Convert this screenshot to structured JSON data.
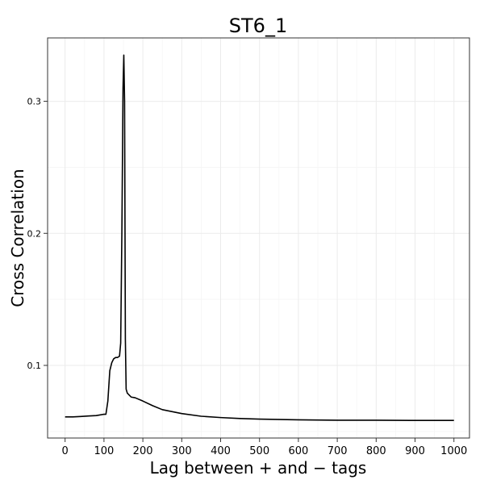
{
  "chart_data": {
    "type": "line",
    "title": "ST6_1",
    "xlabel": "Lag between + and − tags",
    "ylabel": "Cross Correlation",
    "xlim": [
      -45,
      1040
    ],
    "ylim": [
      0.045,
      0.348
    ],
    "xticks": [
      0,
      100,
      200,
      300,
      400,
      500,
      600,
      700,
      800,
      900,
      1000
    ],
    "yticks": [
      0.1,
      0.2,
      0.3
    ],
    "ytick_labels": [
      "0.1",
      "0.2",
      "0.3"
    ],
    "grid": true,
    "series": [
      {
        "x": [
          0,
          20,
          40,
          60,
          80,
          100,
          105,
          110,
          115,
          120,
          125,
          130,
          135,
          140,
          143,
          146,
          149,
          151,
          153,
          155,
          157,
          160,
          165,
          170,
          180,
          200,
          225,
          250,
          300,
          350,
          400,
          450,
          500,
          600,
          700,
          800,
          900,
          1000
        ],
        "y": [
          0.061,
          0.061,
          0.0613,
          0.0617,
          0.062,
          0.063,
          0.063,
          0.073,
          0.096,
          0.102,
          0.105,
          0.106,
          0.106,
          0.107,
          0.117,
          0.2,
          0.31,
          0.335,
          0.3,
          0.12,
          0.082,
          0.079,
          0.0775,
          0.076,
          0.0755,
          0.073,
          0.0695,
          0.0665,
          0.0635,
          0.0615,
          0.0605,
          0.0598,
          0.0593,
          0.0588,
          0.0585,
          0.0585,
          0.0583,
          0.0583
        ]
      }
    ]
  }
}
